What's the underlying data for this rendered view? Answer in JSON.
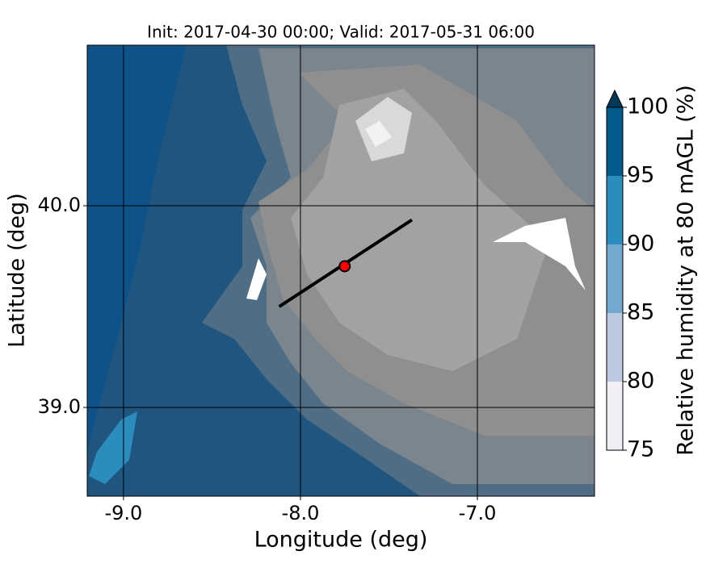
{
  "map": {
    "title": "Init: 2017-04-30 00:00; Valid: 2017-05-31 06:00",
    "xlabel": "Longitude (deg)",
    "ylabel": "Latitude (deg)",
    "xlim": [
      -9.205,
      -6.338
    ],
    "ylim": [
      38.56,
      40.796
    ],
    "xticks": [
      {
        "value": -9,
        "label": "-9.0"
      },
      {
        "value": -8,
        "label": "-8.0"
      },
      {
        "value": -7,
        "label": "-7.0"
      }
    ],
    "yticks": [
      {
        "value": 39,
        "label": "39.0"
      },
      {
        "value": 40,
        "label": "40.0"
      }
    ],
    "grid": true,
    "marker": {
      "lon": -7.75,
      "lat": 39.7,
      "color": "#ff0000"
    },
    "transect": {
      "lon": [
        -8.12,
        -7.37
      ],
      "lat": [
        39.5,
        39.93
      ]
    }
  },
  "colorbar": {
    "label": "Relative humidity at 80 mAGL (%)",
    "ticks": [
      75,
      80,
      85,
      90,
      95,
      100
    ],
    "colors": [
      "#f1eef6",
      "#bdc9e1",
      "#74a9cf",
      "#2b8cbe",
      "#045a8d"
    ],
    "extend_color": "#023858"
  }
}
